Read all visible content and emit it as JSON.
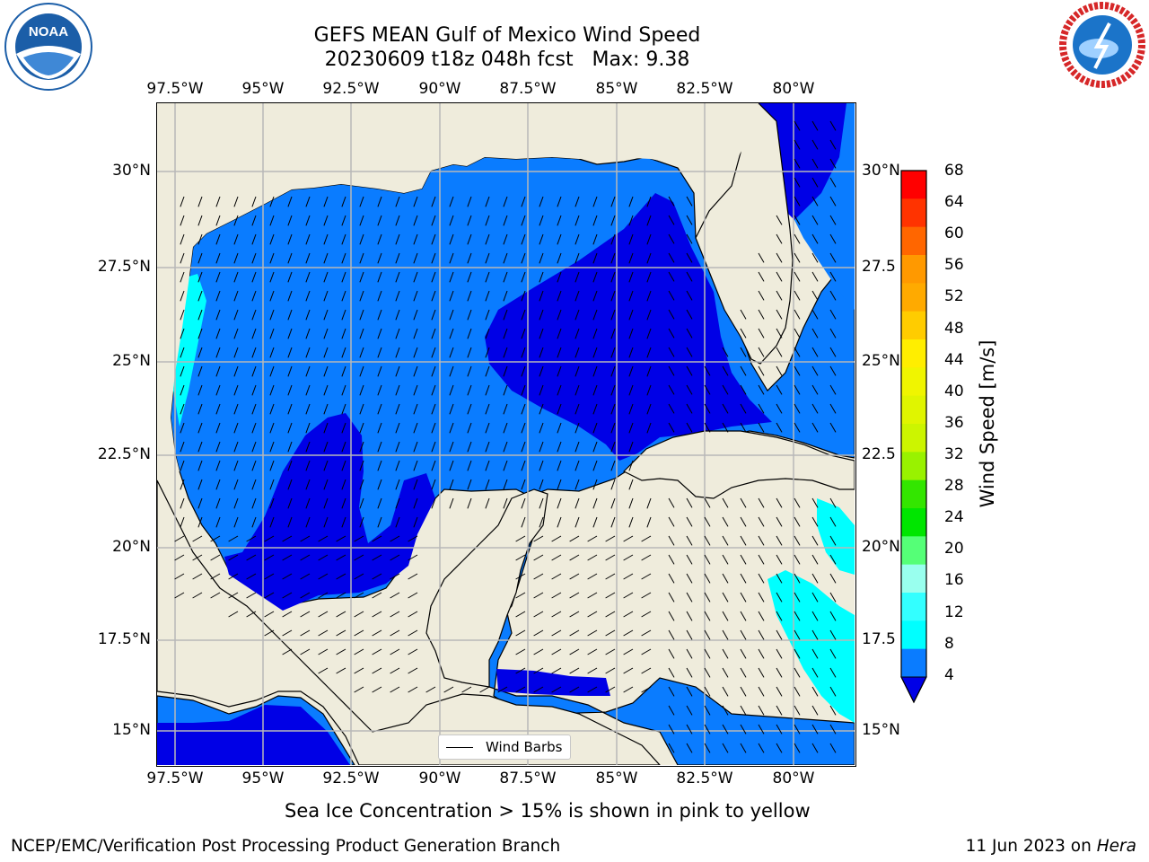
{
  "header": {
    "title_line1": "GEFS MEAN Gulf of Mexico Wind Speed",
    "title_line2": "20230609 t18z 048h fcst   Max: 9.38"
  },
  "logos": {
    "left": {
      "text": "NOAA",
      "ring_text": "NATIONAL OCEANIC AND ATMOSPHERIC ADMINISTRATION · U.S. DEPARTMENT OF COMMERCE",
      "color": "#1b5ea8"
    },
    "right": {
      "ring_text": "NATIONAL WEATHER SERVICE",
      "color": "#d62728",
      "inner": "#1b74c9"
    }
  },
  "map": {
    "lon_ticks": [
      "97.5°W",
      "95°W",
      "92.5°W",
      "90°W",
      "87.5°W",
      "85°W",
      "82.5°W",
      "80°W"
    ],
    "lat_ticks_left": [
      "30°N",
      "27.5°N",
      "25°N",
      "22.5°N",
      "20°N",
      "17.5°N",
      "15°N"
    ],
    "lat_ticks_right": [
      "30°N",
      "27.5",
      "25°N",
      "22.5",
      "20°N",
      "17.5",
      "15°N"
    ],
    "land_color": "#efecdc",
    "legend_label": "Wind Barbs",
    "field_colors": {
      "4-8": "#0a7cff",
      "0-4": "#0000e6",
      "8-12": "#00ffff",
      "12-16": "#44ffff"
    }
  },
  "colorbar": {
    "title": "Wind Speed [m/s]",
    "labels": [
      "68",
      "64",
      "60",
      "56",
      "52",
      "48",
      "44",
      "40",
      "36",
      "32",
      "28",
      "24",
      "20",
      "16",
      "12",
      "8",
      "4"
    ],
    "colors": [
      "#ff0000",
      "#ff3300",
      "#ff6600",
      "#ff9900",
      "#ffaa00",
      "#ffcc00",
      "#ffee00",
      "#f0f500",
      "#e0f500",
      "#ccf500",
      "#99f200",
      "#33e600",
      "#00e600",
      "#55ff77",
      "#99ffee",
      "#33ffff",
      "#00ffff",
      "#0a7cff"
    ],
    "extend_color": "#0000e6"
  },
  "footer": {
    "note": "Sea Ice Concentration > 15% is shown in pink to yellow",
    "credit": "NCEP/EMC/Verification Post Processing Product Generation Branch",
    "date": "11 Jun 2023 on ",
    "host": "Hera"
  }
}
